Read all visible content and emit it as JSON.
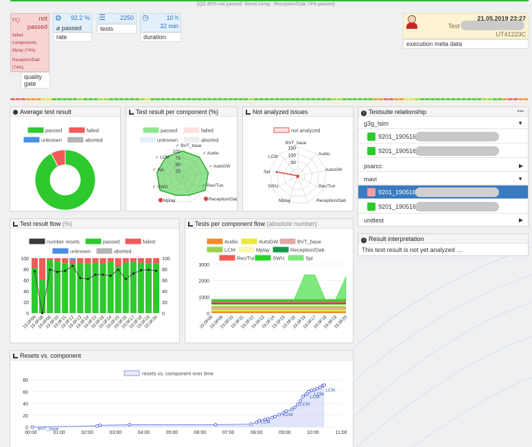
{
  "top_note": "(QG 80% not passed. Worst comp.: Reception/Dab 74% passed)",
  "quality_gate": {
    "status": "not passed",
    "failed_title": "failed components",
    "failed_items": [
      "Mplay (74%)",
      "Reception/Dab (74%)"
    ],
    "label": "quality gate"
  },
  "rate": {
    "value": "92.2 %",
    "sub": "⌀ passed",
    "label": "rate"
  },
  "tests": {
    "value": "2250",
    "label": "tests"
  },
  "duration": {
    "value_h": "10 h",
    "value_min": "32 min",
    "label": "duration"
  },
  "execution": {
    "date": "21.05.2019 23:27",
    "test_label": "Test",
    "id": "UT41223C",
    "label": "execution meta data"
  },
  "progress_strip_colors": [
    "#5ccf39",
    "#a8e043",
    "#e8e84a",
    "#f0a23b",
    "#e66f6f"
  ],
  "avg_test_result": {
    "title": "Average test result",
    "legend": [
      "passed",
      "failed",
      "unknown",
      "aborted"
    ],
    "chart_data": {
      "type": "pie",
      "labels": [
        "passed",
        "failed",
        "unknown",
        "aborted"
      ],
      "values": [
        92.2,
        7.8,
        0,
        0
      ],
      "colors": [
        "#2ec92e",
        "#f25a5a",
        "#4b8fe3",
        "#b5b5b5"
      ]
    }
  },
  "per_component": {
    "title": "Test result per component (%)",
    "legend": [
      "passed",
      "failed",
      "unknown",
      "aborted"
    ],
    "ticks": [
      "100",
      "75",
      "50",
      "25"
    ],
    "chart_data": {
      "type": "radar",
      "axes": [
        "✓ BVT_base",
        "✓ Audio",
        "✓ AutoGW",
        "✓ Rec/Tun",
        "Reception/Dab",
        "Mplay",
        "✓ SWU",
        "✓ Spi",
        "✓ LCM"
      ],
      "passed": [
        100,
        100,
        100,
        100,
        74,
        74,
        100,
        100,
        100
      ],
      "failed": [
        0,
        0,
        0,
        0,
        26,
        26,
        0,
        0,
        0
      ]
    }
  },
  "not_analyzed": {
    "title": "Not analyzed issues",
    "legend": [
      "not analyzed"
    ],
    "ticks": [
      "150",
      "100",
      "50"
    ],
    "chart_data": {
      "type": "radar",
      "axes": [
        "BVT_base",
        "Audio",
        "AutoGW",
        "Rec/Tun",
        "Reception/Dab",
        "Mplay",
        "SWU",
        "Spi",
        "LCM"
      ],
      "values": [
        0,
        0,
        0,
        0,
        5,
        8,
        0,
        120,
        0
      ]
    }
  },
  "testsuite": {
    "title": "Testsuite relationship",
    "more": "•••",
    "groups": [
      {
        "name": "g3g_lsim",
        "open": true,
        "items": [
          "9201_190516_",
          "9201_190516_"
        ]
      },
      {
        "name": "psarcc",
        "open": false,
        "items": []
      },
      {
        "name": "mavi",
        "open": true,
        "items": [
          "9201_190516_",
          "9201_190516_"
        ]
      },
      {
        "name": "unittest",
        "open": false,
        "items": []
      }
    ]
  },
  "interpretation": {
    "title": "Result interpretation",
    "text": "This test result is not yet analyzed ..."
  },
  "result_flow": {
    "title": "Test result flow",
    "title_unit": "(%)",
    "legend": [
      "number resets",
      "passed",
      "failed",
      "unknown",
      "aborted"
    ],
    "y_ticks": [
      "100",
      "80",
      "60",
      "40",
      "20",
      "0"
    ],
    "chart_data": {
      "type": "bar",
      "categories": [
        "19.0F09",
        "19.0F08",
        "19.0F09",
        "19.0F10",
        "19.0F11",
        "19.0F12",
        "19.0F13",
        "19.0F14",
        "19.0F15",
        "19.0F16",
        "19.0F14",
        "19.0F15",
        "19.0F16",
        "19.0F17",
        "19.0F18",
        "19.0F19",
        "19.0F20"
      ],
      "passed": [
        82,
        60,
        97,
        95,
        91,
        89,
        92,
        91,
        92,
        90,
        94,
        85,
        92,
        93,
        92,
        91,
        91
      ],
      "failed": [
        18,
        40,
        3,
        5,
        9,
        8,
        8,
        9,
        8,
        10,
        6,
        15,
        8,
        7,
        8,
        9,
        9
      ],
      "unknown": [
        0,
        0,
        0,
        0,
        0,
        3,
        0,
        0,
        0,
        0,
        0,
        0,
        0,
        0,
        0,
        0,
        0
      ],
      "resets": [
        76,
        0,
        79,
        75,
        77,
        86,
        64,
        62,
        70,
        70,
        68,
        79,
        62,
        72,
        78,
        79,
        77
      ],
      "ylim": [
        0,
        100
      ]
    }
  },
  "comp_flow": {
    "title": "Tests per component flow",
    "title_unit": "(absolute number)",
    "legend": [
      "Audio",
      "AutoGW",
      "BVT_base",
      "LCM",
      "Mplay",
      "Reception/Dab",
      "Rec/Tun",
      "SWU",
      "Spi"
    ],
    "y_ticks": [
      "3000",
      "2000",
      "1000",
      "0"
    ],
    "chart_data": {
      "type": "area",
      "categories": [
        "19.0F08",
        "19.0F09",
        "19.0F10",
        "19.0F11",
        "19.0F12",
        "19.0F13",
        "19.0F14",
        "19.0F15",
        "19.0F16",
        "19.0F19",
        "19.0F17",
        "19.0F18",
        "19.0F19",
        "19.0F20"
      ],
      "totals": [
        850,
        850,
        850,
        850,
        850,
        850,
        850,
        850,
        850,
        2350,
        2350,
        850,
        850,
        2250
      ],
      "ylim": [
        0,
        3200
      ],
      "colors": [
        "#f5892a",
        "#e9e93a",
        "#e2a9a0",
        "#9ad14c",
        "#f7f7b0",
        "#149a4a",
        "#f25a5a",
        "#28d428",
        "#7ee87e"
      ]
    }
  },
  "resets": {
    "title": "Resets vs. component",
    "legend": "resets vs. component over time",
    "y_ticks": [
      "80",
      "60",
      "40",
      "20",
      "0"
    ],
    "x_ticks": [
      "00:00",
      "01:00",
      "02:00",
      "03:00",
      "04:00",
      "05:00",
      "06:00",
      "07:00",
      "08:00",
      "09:00",
      "10:00",
      "11:00"
    ],
    "point_labels": [
      "BVT_base",
      "LCM",
      "LCM",
      "LCM",
      "LCM",
      "LCM",
      "LCM"
    ],
    "chart_data": {
      "type": "scatter",
      "x_hours": [
        0.05,
        2.35,
        2.45,
        3.5,
        6.55,
        7.8,
        8.0,
        8.1,
        8.3,
        8.4,
        8.55,
        8.65,
        8.8,
        8.95,
        9.05,
        9.25,
        9.35,
        9.45,
        9.55,
        9.65,
        9.75,
        9.8,
        9.85,
        9.95,
        10.05,
        10.15,
        10.25,
        10.35,
        10.4
      ],
      "y": [
        0,
        2,
        3,
        4,
        4,
        5,
        8,
        11,
        13,
        14,
        16,
        18,
        21,
        24,
        27,
        30,
        33,
        38,
        44,
        52,
        55,
        57,
        60,
        62,
        63,
        65,
        67,
        70,
        71
      ],
      "xlim": [
        0,
        11
      ],
      "ylim": [
        0,
        80
      ]
    }
  }
}
